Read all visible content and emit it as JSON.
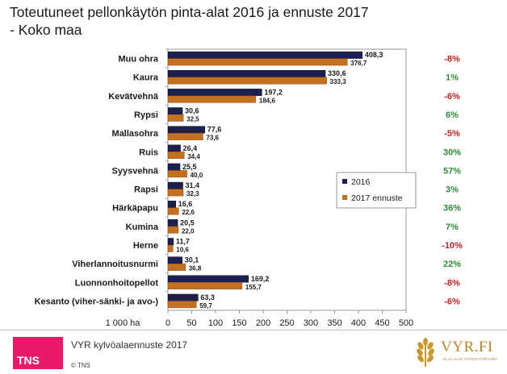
{
  "title_line1": "Toteutuneet pellonkäytön pinta-alat 2016 ja ennuste 2017",
  "title_line2": "- Koko maa",
  "footer": {
    "source": "VYR kylvöalaennuste 2017",
    "copyright": "© TNS",
    "tns_logo": "TNS",
    "vyr_logo": "VYR.FI",
    "vyr_tagline": "VILJA-ALAN YHTEISTYÖRYHMÄ"
  },
  "colors": {
    "series_2016": "#1c2050",
    "series_2017": "#c5701e",
    "positive_change": "#2e8b3a",
    "negative_change": "#cc2222"
  },
  "icons": [
    "tns-logo-icon",
    "wheat-icon"
  ],
  "chart_data": {
    "type": "bar",
    "orientation": "horizontal",
    "categories": [
      "Muu ohra",
      "Kaura",
      "Kevätvehnä",
      "Rypsi",
      "Mallasohra",
      "Ruis",
      "Syysvehnä",
      "Rapsi",
      "Härkäpapu",
      "Kumina",
      "Herne",
      "Viherlannoitusnurmi",
      "Luonnonhoitopellot",
      "Kesanto (viher-sänki- ja avo-)"
    ],
    "series": [
      {
        "name": "2016",
        "values": [
          408.3,
          330.6,
          197.2,
          30.6,
          77.6,
          26.4,
          25.5,
          31.4,
          16.6,
          20.5,
          11.7,
          30.1,
          169.2,
          63.3
        ],
        "labels": [
          "408,3",
          "330,6",
          "197,2",
          "30,6",
          "77,6",
          "26,4",
          "25,5",
          "31,4",
          "16,6",
          "20,5",
          "11,7",
          "30,1",
          "169,2",
          "63,3"
        ]
      },
      {
        "name": "2017 ennuste",
        "values": [
          376.7,
          333.3,
          184.6,
          32.5,
          73.6,
          34.4,
          40.0,
          32.3,
          22.6,
          22.0,
          10.6,
          36.8,
          155.7,
          59.7
        ],
        "labels": [
          "376,7",
          "333,3",
          "184,6",
          "32,5",
          "73,6",
          "34,4",
          "40,0",
          "32,3",
          "22,6",
          "22,0",
          "10,6",
          "36,8",
          "155,7",
          "59,7"
        ]
      }
    ],
    "changes": [
      "-8%",
      "1%",
      "-6%",
      "6%",
      "-5%",
      "30%",
      "57%",
      "3%",
      "36%",
      "7%",
      "-10%",
      "22%",
      "-8%",
      "-6%"
    ],
    "axis_unit_label": "1 000 ha",
    "xlim": [
      0,
      500
    ],
    "xticks": [
      0,
      50,
      100,
      150,
      200,
      250,
      300,
      350,
      400,
      450,
      500
    ],
    "legend_position": "right-middle",
    "grid": false
  }
}
